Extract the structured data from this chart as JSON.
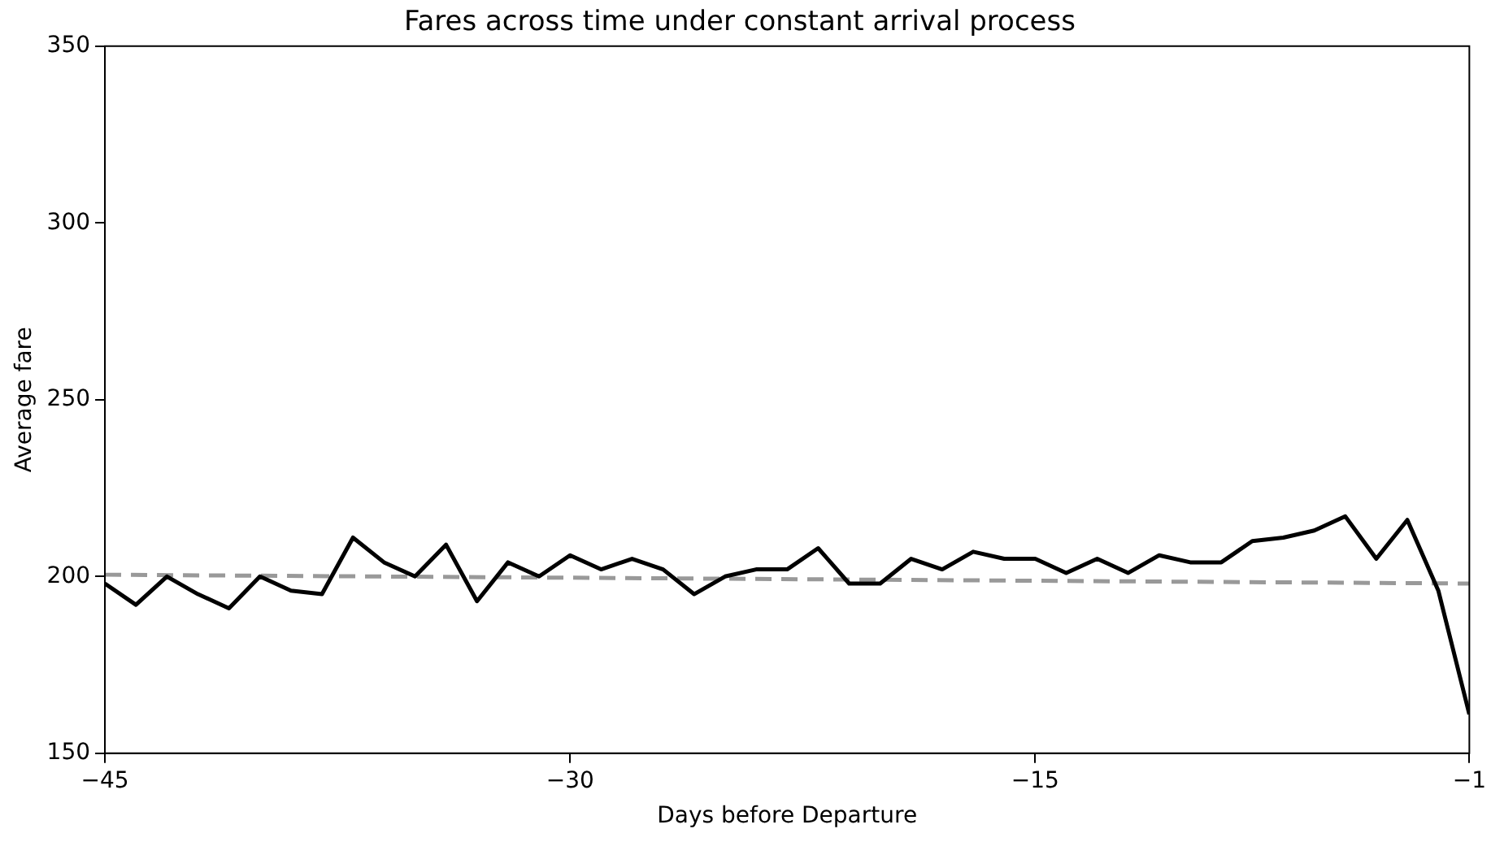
{
  "chart_data": {
    "type": "line",
    "title": "Fares across time under constant arrival process",
    "xlabel": "Days before Departure",
    "ylabel": "Average fare",
    "x": [
      -45,
      -44,
      -43,
      -42,
      -41,
      -40,
      -39,
      -38,
      -37,
      -36,
      -35,
      -34,
      -33,
      -32,
      -31,
      -30,
      -29,
      -28,
      -27,
      -26,
      -25,
      -24,
      -23,
      -22,
      -21,
      -20,
      -19,
      -18,
      -17,
      -16,
      -15,
      -14,
      -13,
      -12,
      -11,
      -10,
      -9,
      -8,
      -7,
      -6,
      -5,
      -4,
      -3,
      -2,
      -1
    ],
    "series": [
      {
        "color": "#000000",
        "line_style": "solid",
        "values": [
          198,
          192,
          200,
          195,
          191,
          200,
          196,
          195,
          211,
          204,
          200,
          209,
          193,
          204,
          200,
          206,
          202,
          205,
          202,
          195,
          200,
          202,
          202,
          208,
          198,
          198,
          205,
          202,
          207,
          205,
          205,
          201,
          205,
          201,
          206,
          204,
          204,
          210,
          211,
          213,
          217,
          205,
          216,
          196,
          161
        ]
      },
      {
        "color": "#999999",
        "line_style": "dashed",
        "x": [
          -45,
          -1
        ],
        "values": [
          200.5,
          198
        ]
      }
    ],
    "xlim": [
      -45,
      -1
    ],
    "xticks": [
      -45,
      -30,
      -15,
      -1
    ],
    "ylim": [
      150,
      350
    ],
    "yticks": [
      150,
      200,
      250,
      300,
      350
    ],
    "grid": false,
    "legend": false,
    "marker": "none"
  }
}
